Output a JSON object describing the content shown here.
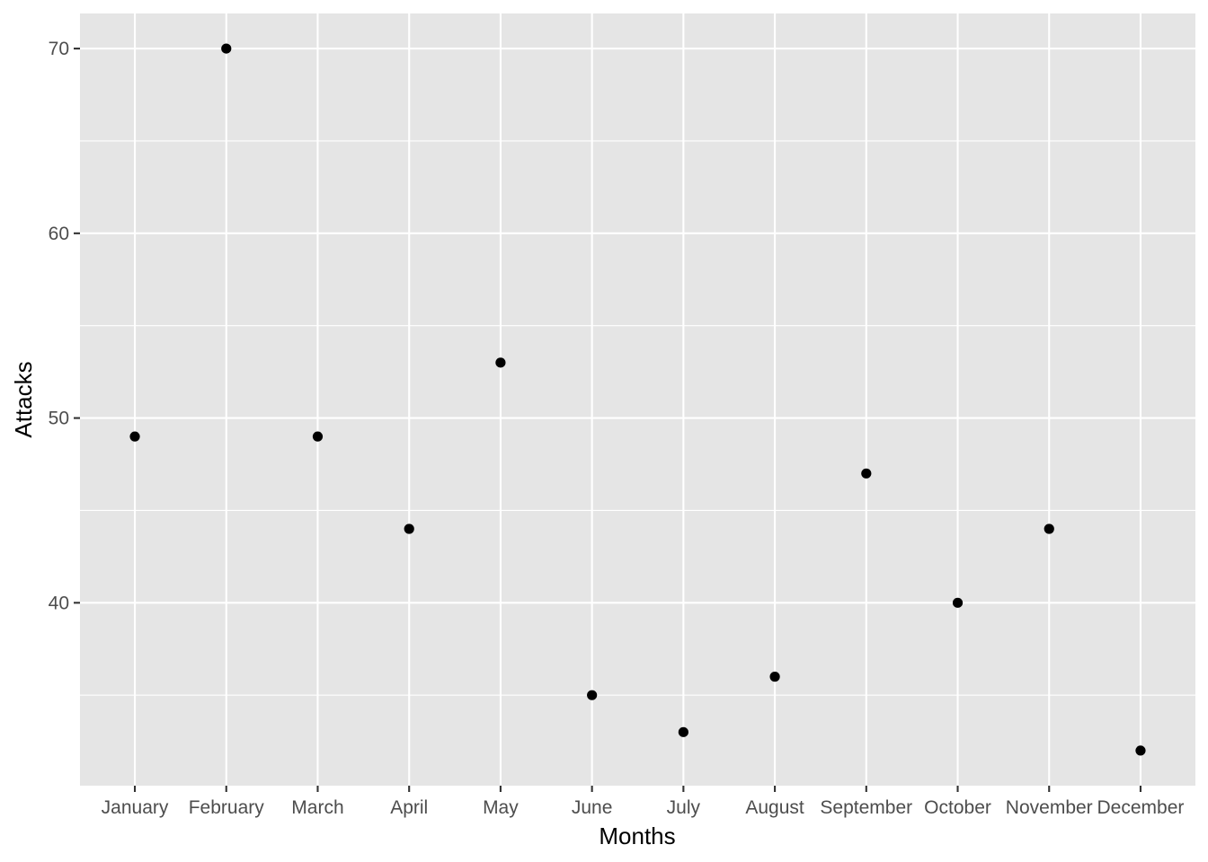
{
  "chart_data": {
    "type": "scatter",
    "xlabel": "Months",
    "ylabel": "Attacks",
    "categories": [
      "January",
      "February",
      "March",
      "April",
      "May",
      "June",
      "July",
      "August",
      "September",
      "October",
      "November",
      "December"
    ],
    "values": [
      49,
      70,
      49,
      44,
      53,
      35,
      33,
      36,
      47,
      40,
      44,
      32
    ],
    "ylim": [
      30.1,
      71.9
    ],
    "y_ticks": [
      40,
      50,
      60,
      70
    ],
    "y_minor_ticks": [
      35,
      45,
      55,
      65
    ],
    "grid": true,
    "colors": {
      "panel": "#e5e5e5",
      "grid": "#ffffff",
      "point": "#000000"
    }
  }
}
